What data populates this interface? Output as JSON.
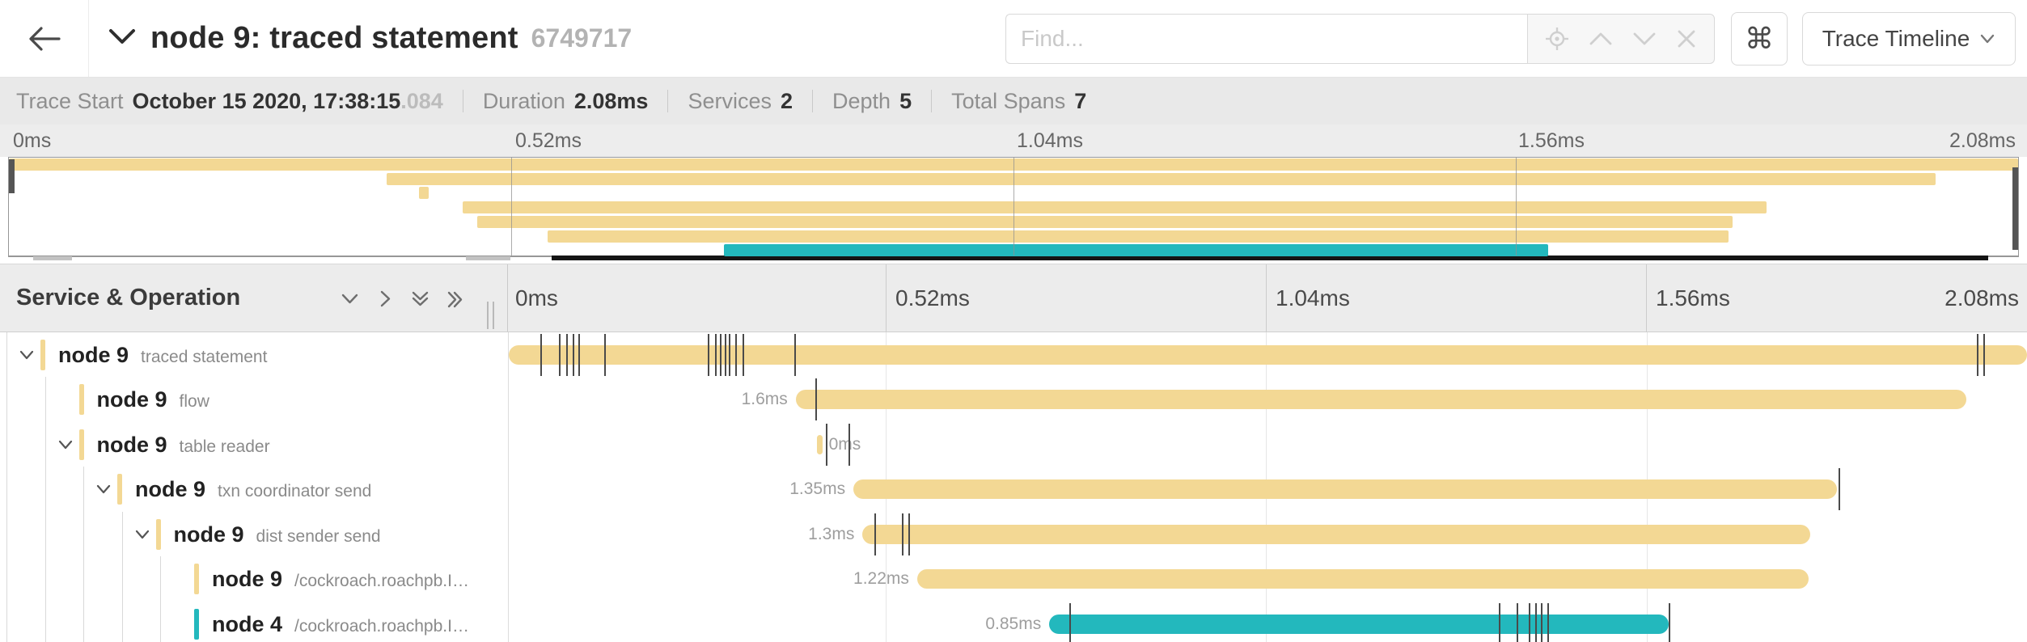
{
  "header": {
    "title": "node 9: traced statement",
    "trace_id": "6749717",
    "find_placeholder": "Find...",
    "shortcut_key": "⌘",
    "view_selector_label": "Trace Timeline"
  },
  "summary": [
    {
      "label": "Trace Start",
      "value": "October 15 2020, 17:38:15",
      "suffix": ".084"
    },
    {
      "label": "Duration",
      "value": "2.08ms"
    },
    {
      "label": "Services",
      "value": "2"
    },
    {
      "label": "Depth",
      "value": "5"
    },
    {
      "label": "Total Spans",
      "value": "7"
    }
  ],
  "colors": {
    "tan": "#f3d894",
    "teal": "#23b8bd"
  },
  "minimap": {
    "tick_labels": [
      "0ms",
      "0.52ms",
      "1.04ms",
      "1.56ms",
      "2.08ms"
    ],
    "bars": [
      {
        "start_pct": 0,
        "width_pct": 100,
        "color": "tan"
      },
      {
        "start_pct": 18.8,
        "width_pct": 77.1,
        "color": "tan"
      },
      {
        "start_pct": 20.4,
        "width_pct": 0.5,
        "color": "tan"
      },
      {
        "start_pct": 22.6,
        "width_pct": 64.9,
        "color": "tan"
      },
      {
        "start_pct": 23.3,
        "width_pct": 62.5,
        "color": "tan"
      },
      {
        "start_pct": 26.8,
        "width_pct": 58.8,
        "color": "tan"
      },
      {
        "start_pct": 35.6,
        "width_pct": 41.0,
        "color": "teal"
      }
    ]
  },
  "timeline_header": {
    "title": "Service & Operation",
    "tick_labels": [
      "0ms",
      "0.52ms",
      "1.04ms",
      "1.56ms",
      "2.08ms"
    ]
  },
  "spans": [
    {
      "service": "node 9",
      "operation": "traced statement",
      "depth": 0,
      "expandable": true,
      "color": "tan",
      "start_pct": 0,
      "width_pct": 100,
      "duration_label": "",
      "label_side": "left",
      "tick_pcts": [
        2.1,
        3.3,
        3.8,
        4.2,
        4.6,
        6.3,
        13.1,
        13.6,
        13.9,
        14.2,
        14.5,
        14.9,
        15.4,
        18.8,
        96.7,
        97.1
      ]
    },
    {
      "service": "node 9",
      "operation": "flow",
      "depth": 1,
      "expandable": false,
      "color": "tan",
      "start_pct": 18.9,
      "width_pct": 77.1,
      "duration_label": "1.6ms",
      "label_side": "left",
      "tick_pcts": [
        20.2
      ]
    },
    {
      "service": "node 9",
      "operation": "table reader",
      "depth": 1,
      "expandable": true,
      "color": "tan",
      "start_pct": 20.3,
      "width_pct": 0.35,
      "duration_label": "0ms",
      "label_side": "right",
      "tick_pcts": [
        20.9,
        22.4
      ]
    },
    {
      "service": "node 9",
      "operation": "txn coordinator send",
      "depth": 2,
      "expandable": true,
      "color": "tan",
      "start_pct": 22.7,
      "width_pct": 64.8,
      "duration_label": "1.35ms",
      "label_side": "left",
      "tick_pcts": [
        87.6
      ]
    },
    {
      "service": "node 9",
      "operation": "dist sender send",
      "depth": 3,
      "expandable": true,
      "color": "tan",
      "start_pct": 23.3,
      "width_pct": 62.4,
      "duration_label": "1.3ms",
      "label_side": "left",
      "tick_pcts": [
        24.1,
        25.9,
        26.3
      ]
    },
    {
      "service": "node 9",
      "operation": "/cockroach.roachpb.I…",
      "depth": 4,
      "expandable": false,
      "color": "tan",
      "start_pct": 26.9,
      "width_pct": 58.7,
      "duration_label": "1.22ms",
      "label_side": "left",
      "tick_pcts": []
    },
    {
      "service": "node 4",
      "operation": "/cockroach.roachpb.I…",
      "depth": 4,
      "expandable": false,
      "color": "teal",
      "start_pct": 35.6,
      "width_pct": 40.8,
      "duration_label": "0.85ms",
      "label_side": "left",
      "tick_pcts": [
        36.9,
        65.2,
        66.4,
        67.2,
        67.6,
        68.0,
        68.4,
        76.4
      ]
    }
  ]
}
